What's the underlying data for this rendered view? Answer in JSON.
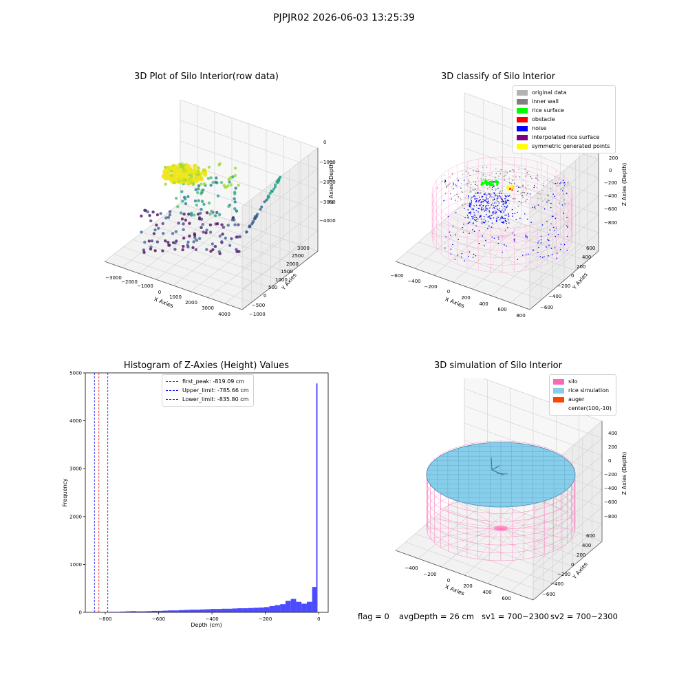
{
  "suptitle": "PJPJR02 2026-06-03 13:25:39",
  "panels": {
    "raw": {
      "title": "3D Plot of Silo Interior(row data)",
      "x_ticks": [
        "−3000",
        "−2000",
        "−1000",
        "0",
        "1000",
        "2000",
        "3000",
        "4000"
      ],
      "y_ticks": [
        "−1000",
        "−500",
        "0",
        "500",
        "1000",
        "1500",
        "2000",
        "2500",
        "3000"
      ],
      "z_ticks": [
        "0",
        "−1000",
        "−2000",
        "−3000",
        "−4000"
      ],
      "xlabel": "X Axies",
      "ylabel": "Y Axies",
      "zlabel": "Z Axies (Depth)"
    },
    "classify": {
      "title": "3D classify of Silo Interior",
      "x_ticks": [
        "−600",
        "−400",
        "−200",
        "0",
        "200",
        "400",
        "600",
        "800"
      ],
      "y_ticks": [
        "−600",
        "−400",
        "−200",
        "0",
        "200",
        "400",
        "600"
      ],
      "z_ticks": [
        "200",
        "0",
        "−200",
        "−400",
        "−600",
        "−800"
      ],
      "xlabel": "X Axies",
      "ylabel": "Y Axies",
      "zlabel": "Z Axies (Depth)",
      "legend": [
        {
          "label": "original data",
          "color": "#b3b3b3"
        },
        {
          "label": "inner wall",
          "color": "#808080"
        },
        {
          "label": "rice surface",
          "color": "#00ff00"
        },
        {
          "label": "obstacle",
          "color": "#ff0000"
        },
        {
          "label": "noise",
          "color": "#0000ff"
        },
        {
          "label": "interpolated rice surface",
          "color": "#800080"
        },
        {
          "label": "symmetric generated points",
          "color": "#ffff00"
        }
      ]
    },
    "hist": {
      "title": "Histogram of Z-Axies (Height) Values",
      "xlabel": "Depth (cm)",
      "ylabel": "Frequency",
      "x_ticks": [
        "−800",
        "−600",
        "−400",
        "−200",
        "0"
      ],
      "y_ticks": [
        "0",
        "1000",
        "2000",
        "3000",
        "4000",
        "5000"
      ],
      "legend": [
        {
          "label": "first_peak: -819.09 cm",
          "color": "#ff0000"
        },
        {
          "label": "Upper_limit: -785.66 cm",
          "color": "#0000ff"
        },
        {
          "label": "Lower_limit: -835.80 cm",
          "color": "#0000ff"
        }
      ]
    },
    "sim": {
      "title": "3D simulation of Silo Interior",
      "x_ticks": [
        "−400",
        "−200",
        "0",
        "200",
        "400",
        "600"
      ],
      "y_ticks": [
        "−600",
        "−400",
        "−200",
        "0",
        "200",
        "400",
        "600"
      ],
      "z_ticks": [
        "400",
        "200",
        "0",
        "−200",
        "−400",
        "−600",
        "−800"
      ],
      "xlabel": "X Axies",
      "ylabel": "Y Axies",
      "zlabel": "Z Axies (Depth)",
      "legend": [
        {
          "label": "silo",
          "color": "#ff69b4"
        },
        {
          "label": "rice simulation",
          "color": "#87ceeb"
        },
        {
          "label": "auger",
          "color": "#ff4500"
        },
        {
          "label": "center(100,-10)",
          "color": ""
        }
      ]
    }
  },
  "footer": {
    "flag": "flag = 0",
    "avg_depth": "avgDepth = 26 cm",
    "sv1": "sv1 = 700~2300",
    "sv2": "sv2 = 700~2300"
  },
  "chart_data": [
    {
      "type": "scatter",
      "title": "3D Plot of Silo Interior(row data)",
      "xlabel": "X Axies",
      "ylabel": "Y Axies",
      "zlabel": "Z Axies (Depth)",
      "xlim": [
        -3500,
        4500
      ],
      "ylim": [
        -1000,
        3000
      ],
      "zlim": [
        -4500,
        0
      ]
    },
    {
      "type": "scatter",
      "title": "3D classify of Silo Interior",
      "xlabel": "X Axies",
      "ylabel": "Y Axies",
      "zlabel": "Z Axies (Depth)",
      "xlim": [
        -600,
        800
      ],
      "ylim": [
        -600,
        600
      ],
      "zlim": [
        -900,
        200
      ],
      "series": [
        {
          "name": "original data"
        },
        {
          "name": "inner wall"
        },
        {
          "name": "rice surface"
        },
        {
          "name": "obstacle"
        },
        {
          "name": "noise"
        },
        {
          "name": "interpolated rice surface"
        },
        {
          "name": "symmetric generated points"
        }
      ]
    },
    {
      "type": "bar",
      "title": "Histogram of Z-Axies (Height) Values",
      "xlabel": "Depth (cm)",
      "ylabel": "Frequency",
      "xlim": [
        -870,
        40
      ],
      "ylim": [
        0,
        5000
      ],
      "bins": [
        {
          "x0": -780,
          "x1": -760,
          "count": 10
        },
        {
          "x0": -760,
          "x1": -740,
          "count": 10
        },
        {
          "x0": -740,
          "x1": -720,
          "count": 15
        },
        {
          "x0": -720,
          "x1": -700,
          "count": 20
        },
        {
          "x0": -700,
          "x1": -680,
          "count": 25
        },
        {
          "x0": -680,
          "x1": -660,
          "count": 20
        },
        {
          "x0": -660,
          "x1": -640,
          "count": 20
        },
        {
          "x0": -640,
          "x1": -620,
          "count": 25
        },
        {
          "x0": -620,
          "x1": -600,
          "count": 30
        },
        {
          "x0": -600,
          "x1": -580,
          "count": 30
        },
        {
          "x0": -580,
          "x1": -560,
          "count": 35
        },
        {
          "x0": -560,
          "x1": -540,
          "count": 40
        },
        {
          "x0": -540,
          "x1": -520,
          "count": 40
        },
        {
          "x0": -520,
          "x1": -500,
          "count": 45
        },
        {
          "x0": -500,
          "x1": -480,
          "count": 50
        },
        {
          "x0": -480,
          "x1": -460,
          "count": 55
        },
        {
          "x0": -460,
          "x1": -440,
          "count": 55
        },
        {
          "x0": -440,
          "x1": -420,
          "count": 60
        },
        {
          "x0": -420,
          "x1": -400,
          "count": 65
        },
        {
          "x0": -400,
          "x1": -380,
          "count": 70
        },
        {
          "x0": -380,
          "x1": -360,
          "count": 70
        },
        {
          "x0": -360,
          "x1": -340,
          "count": 75
        },
        {
          "x0": -340,
          "x1": -320,
          "count": 75
        },
        {
          "x0": -320,
          "x1": -300,
          "count": 80
        },
        {
          "x0": -300,
          "x1": -280,
          "count": 85
        },
        {
          "x0": -280,
          "x1": -260,
          "count": 85
        },
        {
          "x0": -260,
          "x1": -240,
          "count": 90
        },
        {
          "x0": -240,
          "x1": -220,
          "count": 95
        },
        {
          "x0": -220,
          "x1": -200,
          "count": 100
        },
        {
          "x0": -200,
          "x1": -180,
          "count": 110
        },
        {
          "x0": -180,
          "x1": -160,
          "count": 130
        },
        {
          "x0": -160,
          "x1": -140,
          "count": 150
        },
        {
          "x0": -140,
          "x1": -120,
          "count": 170
        },
        {
          "x0": -120,
          "x1": -100,
          "count": 240
        },
        {
          "x0": -100,
          "x1": -80,
          "count": 280
        },
        {
          "x0": -80,
          "x1": -60,
          "count": 220
        },
        {
          "x0": -60,
          "x1": -40,
          "count": 180
        },
        {
          "x0": -40,
          "x1": -20,
          "count": 220
        },
        {
          "x0": -20,
          "x1": -5,
          "count": 530
        },
        {
          "x0": -5,
          "x1": 0,
          "count": 4780
        }
      ],
      "vlines": [
        {
          "name": "first_peak",
          "x": -819.09,
          "color": "#ff0000"
        },
        {
          "name": "Upper_limit",
          "x": -785.66,
          "color": "#0000ff"
        },
        {
          "name": "Lower_limit",
          "x": -835.8,
          "color": "#0000ff"
        }
      ]
    },
    {
      "type": "area",
      "title": "3D simulation of Silo Interior",
      "xlabel": "X Axies",
      "ylabel": "Y Axies",
      "zlabel": "Z Axies (Depth)",
      "xlim": [
        -500,
        700
      ],
      "ylim": [
        -700,
        700
      ],
      "zlim": [
        -900,
        450
      ],
      "series": [
        {
          "name": "silo"
        },
        {
          "name": "rice simulation"
        },
        {
          "name": "auger"
        },
        {
          "name": "center(100,-10)"
        }
      ]
    }
  ]
}
